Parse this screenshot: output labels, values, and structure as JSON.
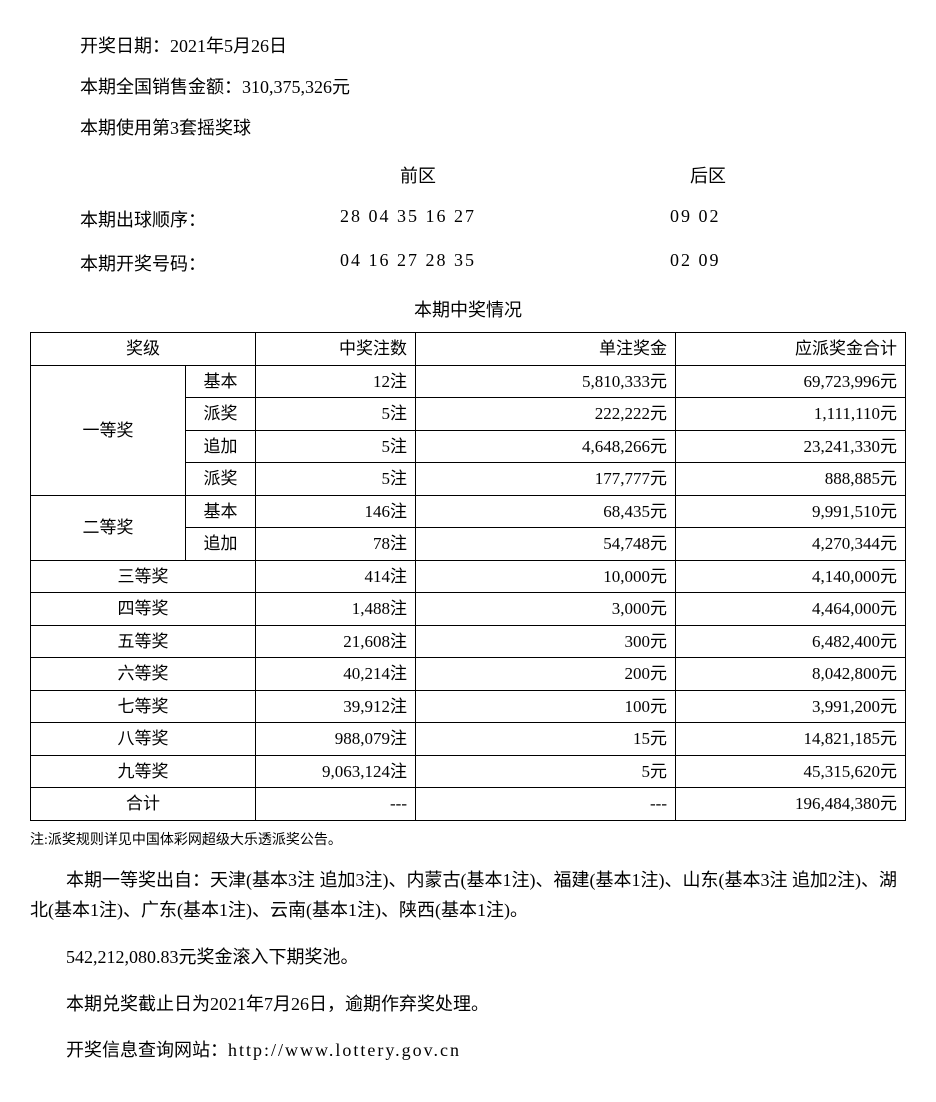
{
  "header": {
    "draw_date_label": "开奖日期：",
    "draw_date": "2021年5月26日",
    "sales_label": "本期全国销售金额：",
    "sales_amount": "310,375,326元",
    "ball_set": "本期使用第3套摇奖球"
  },
  "numbers": {
    "front_header": "前区",
    "back_header": "后区",
    "draw_order_label": "本期出球顺序：",
    "draw_order_front": "28 04 35 16 27",
    "draw_order_back": "09 02",
    "win_number_label": "本期开奖号码：",
    "win_number_front": "04 16 27 28 35",
    "win_number_back": "02 09"
  },
  "table": {
    "title": "本期中奖情况",
    "headers": {
      "level": "奖级",
      "count": "中奖注数",
      "prize": "单注奖金",
      "total": "应派奖金合计"
    },
    "tier1_label": "一等奖",
    "tier2_label": "二等奖",
    "sub_basic": "基本",
    "sub_bonus": "派奖",
    "sub_add": "追加",
    "t1r1": {
      "count": "12注",
      "prize": "5,810,333元",
      "total": "69,723,996元"
    },
    "t1r2": {
      "count": "5注",
      "prize": "222,222元",
      "total": "1,111,110元"
    },
    "t1r3": {
      "count": "5注",
      "prize": "4,648,266元",
      "total": "23,241,330元"
    },
    "t1r4": {
      "count": "5注",
      "prize": "177,777元",
      "total": "888,885元"
    },
    "t2r1": {
      "count": "146注",
      "prize": "68,435元",
      "total": "9,991,510元"
    },
    "t2r2": {
      "count": "78注",
      "prize": "54,748元",
      "total": "4,270,344元"
    },
    "t3": {
      "label": "三等奖",
      "count": "414注",
      "prize": "10,000元",
      "total": "4,140,000元"
    },
    "t4": {
      "label": "四等奖",
      "count": "1,488注",
      "prize": "3,000元",
      "total": "4,464,000元"
    },
    "t5": {
      "label": "五等奖",
      "count": "21,608注",
      "prize": "300元",
      "total": "6,482,400元"
    },
    "t6": {
      "label": "六等奖",
      "count": "40,214注",
      "prize": "200元",
      "total": "8,042,800元"
    },
    "t7": {
      "label": "七等奖",
      "count": "39,912注",
      "prize": "100元",
      "total": "3,991,200元"
    },
    "t8": {
      "label": "八等奖",
      "count": "988,079注",
      "prize": "15元",
      "total": "14,821,185元"
    },
    "t9": {
      "label": "九等奖",
      "count": "9,063,124注",
      "prize": "5元",
      "total": "45,315,620元"
    },
    "sum": {
      "label": "合计",
      "count": "---",
      "prize": "---",
      "total": "196,484,380元"
    }
  },
  "footnote": "注:派奖规则详见中国体彩网超级大乐透派奖公告。",
  "para1": "本期一等奖出自：天津(基本3注 追加3注)、内蒙古(基本1注)、福建(基本1注)、山东(基本3注 追加2注)、湖北(基本1注)、广东(基本1注)、云南(基本1注)、陕西(基本1注)。",
  "para2": "542,212,080.83元奖金滚入下期奖池。",
  "para3": "本期兑奖截止日为2021年7月26日，逾期作弃奖处理。",
  "para4_label": "开奖信息查询网站：",
  "para4_url": "http://www.lottery.gov.cn"
}
